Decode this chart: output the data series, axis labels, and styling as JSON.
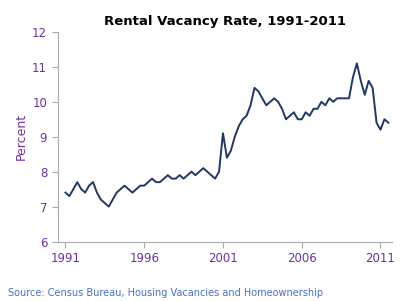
{
  "title": "Rental Vacancy Rate, 1991-2011",
  "ylabel": "Percent",
  "source": "Source: Census Bureau, Housing Vacancies and Homeownership",
  "line_color": "#1f3864",
  "source_color": "#4472c4",
  "label_color": "#7030a0",
  "spine_color": "#aaaaaa",
  "ylim": [
    6,
    12
  ],
  "yticks": [
    6,
    7,
    8,
    9,
    10,
    11,
    12
  ],
  "xticks": [
    1991,
    1996,
    2001,
    2006,
    2011
  ],
  "xlim": [
    1990.5,
    2011.75
  ],
  "years": [
    1991.0,
    1991.25,
    1991.5,
    1991.75,
    1992.0,
    1992.25,
    1992.5,
    1992.75,
    1993.0,
    1993.25,
    1993.5,
    1993.75,
    1994.0,
    1994.25,
    1994.5,
    1994.75,
    1995.0,
    1995.25,
    1995.5,
    1995.75,
    1996.0,
    1996.25,
    1996.5,
    1996.75,
    1997.0,
    1997.25,
    1997.5,
    1997.75,
    1998.0,
    1998.25,
    1998.5,
    1998.75,
    1999.0,
    1999.25,
    1999.5,
    1999.75,
    2000.0,
    2000.25,
    2000.5,
    2000.75,
    2001.0,
    2001.25,
    2001.5,
    2001.75,
    2002.0,
    2002.25,
    2002.5,
    2002.75,
    2003.0,
    2003.25,
    2003.5,
    2003.75,
    2004.0,
    2004.25,
    2004.5,
    2004.75,
    2005.0,
    2005.25,
    2005.5,
    2005.75,
    2006.0,
    2006.25,
    2006.5,
    2006.75,
    2007.0,
    2007.25,
    2007.5,
    2007.75,
    2008.0,
    2008.25,
    2008.5,
    2008.75,
    2009.0,
    2009.25,
    2009.5,
    2009.75,
    2010.0,
    2010.25,
    2010.5,
    2010.75,
    2011.0,
    2011.25,
    2011.5
  ],
  "values": [
    7.4,
    7.3,
    7.5,
    7.7,
    7.5,
    7.4,
    7.6,
    7.7,
    7.4,
    7.2,
    7.1,
    7.0,
    7.2,
    7.4,
    7.5,
    7.6,
    7.5,
    7.4,
    7.5,
    7.6,
    7.6,
    7.7,
    7.8,
    7.7,
    7.7,
    7.8,
    7.9,
    7.8,
    7.8,
    7.9,
    7.8,
    7.9,
    8.0,
    7.9,
    8.0,
    8.1,
    8.0,
    7.9,
    7.8,
    8.0,
    9.1,
    8.4,
    8.6,
    9.0,
    9.3,
    9.5,
    9.6,
    9.9,
    10.4,
    10.3,
    10.1,
    9.9,
    10.0,
    10.1,
    10.0,
    9.8,
    9.5,
    9.6,
    9.7,
    9.5,
    9.5,
    9.7,
    9.6,
    9.8,
    9.8,
    10.0,
    9.9,
    10.1,
    10.0,
    10.1,
    10.1,
    10.1,
    10.1,
    10.7,
    11.1,
    10.6,
    10.2,
    10.6,
    10.4,
    9.4,
    9.2,
    9.5,
    9.4
  ]
}
